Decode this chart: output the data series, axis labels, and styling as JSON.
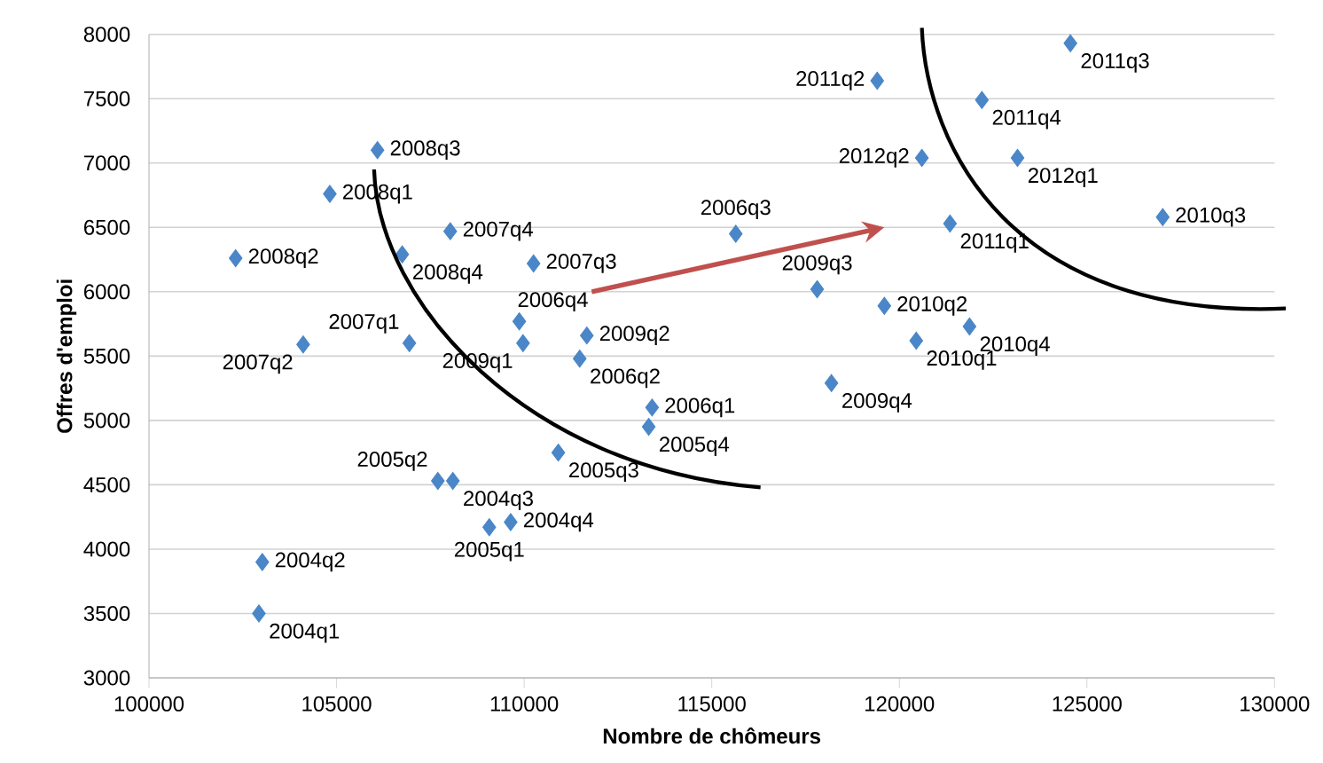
{
  "chart_data": {
    "type": "scatter",
    "xlabel": "Nombre de chômeurs",
    "ylabel": "Offres d'emploi",
    "xlim": [
      100000,
      130000
    ],
    "xticks": [
      100000,
      105000,
      110000,
      115000,
      120000,
      125000,
      130000
    ],
    "ylim": [
      3000,
      8000
    ],
    "yticks": [
      3000,
      3500,
      4000,
      4500,
      5000,
      5500,
      6000,
      6500,
      7000,
      7500,
      8000
    ],
    "grid": "y",
    "marker": "diamond",
    "series": [
      {
        "color": "#4a86c8",
        "x": [
          102930,
          103020,
          108100,
          109640,
          109070,
          107700,
          110910,
          113320,
          113410,
          111480,
          115640,
          109870,
          106940,
          104110,
          110250,
          108030,
          104820,
          102310,
          106090,
          106750,
          109970,
          111670,
          117810,
          118190,
          120450,
          119600,
          127020,
          121870,
          121350,
          119410,
          124560,
          122200,
          123150,
          120600
        ],
        "values": [
          3500,
          3900,
          4530,
          4210,
          4170,
          4530,
          4750,
          4950,
          5100,
          5480,
          6450,
          5770,
          5600,
          5590,
          6220,
          6470,
          6760,
          6260,
          7100,
          6290,
          5600,
          5660,
          6020,
          5290,
          5620,
          5890,
          6580,
          5730,
          6530,
          7640,
          7930,
          7490,
          7040,
          7040
        ]
      }
    ],
    "annotations": [
      {
        "text": "2004q1",
        "x": 102930,
        "y": 3500
      },
      {
        "text": "2004q2",
        "x": 103020,
        "y": 3900
      },
      {
        "text": "2004q3",
        "x": 108100,
        "y": 4530
      },
      {
        "text": "2004q4",
        "x": 109640,
        "y": 4210
      },
      {
        "text": "2005q1",
        "x": 109070,
        "y": 4170
      },
      {
        "text": "2005q2",
        "x": 107700,
        "y": 4530
      },
      {
        "text": "2005q3",
        "x": 110910,
        "y": 4750
      },
      {
        "text": "2005q4",
        "x": 113320,
        "y": 4950
      },
      {
        "text": "2006q1",
        "x": 113410,
        "y": 5100
      },
      {
        "text": "2006q2",
        "x": 111480,
        "y": 5480
      },
      {
        "text": "2006q3",
        "x": 115640,
        "y": 6450
      },
      {
        "text": "2006q4",
        "x": 109870,
        "y": 5770
      },
      {
        "text": "2007q1",
        "x": 106940,
        "y": 5600
      },
      {
        "text": "2007q2",
        "x": 104110,
        "y": 5590
      },
      {
        "text": "2007q3",
        "x": 110250,
        "y": 6220
      },
      {
        "text": "2007q4",
        "x": 108030,
        "y": 6470
      },
      {
        "text": "2008q1",
        "x": 104820,
        "y": 6760
      },
      {
        "text": "2008q2",
        "x": 102310,
        "y": 6260
      },
      {
        "text": "2008q3",
        "x": 106090,
        "y": 7100
      },
      {
        "text": "2008q4",
        "x": 106750,
        "y": 6290
      },
      {
        "text": "2009q1",
        "x": 109970,
        "y": 5600
      },
      {
        "text": "2009q2",
        "x": 111670,
        "y": 5660
      },
      {
        "text": "2009q3",
        "x": 117810,
        "y": 6020
      },
      {
        "text": "2009q4",
        "x": 118190,
        "y": 5290
      },
      {
        "text": "2010q1",
        "x": 120450,
        "y": 5620
      },
      {
        "text": "2010q2",
        "x": 119600,
        "y": 5890
      },
      {
        "text": "2010q3",
        "x": 127020,
        "y": 6580
      },
      {
        "text": "2010q4",
        "x": 121870,
        "y": 5730
      },
      {
        "text": "2011q1",
        "x": 121350,
        "y": 6530
      },
      {
        "text": "2011q2",
        "x": 119410,
        "y": 7640
      },
      {
        "text": "2011q3",
        "x": 124560,
        "y": 7930
      },
      {
        "text": "2011q4",
        "x": 122200,
        "y": 7490
      },
      {
        "text": "2012q1",
        "x": 123150,
        "y": 7040
      },
      {
        "text": "2012q2",
        "x": 120600,
        "y": 7040
      }
    ]
  }
}
